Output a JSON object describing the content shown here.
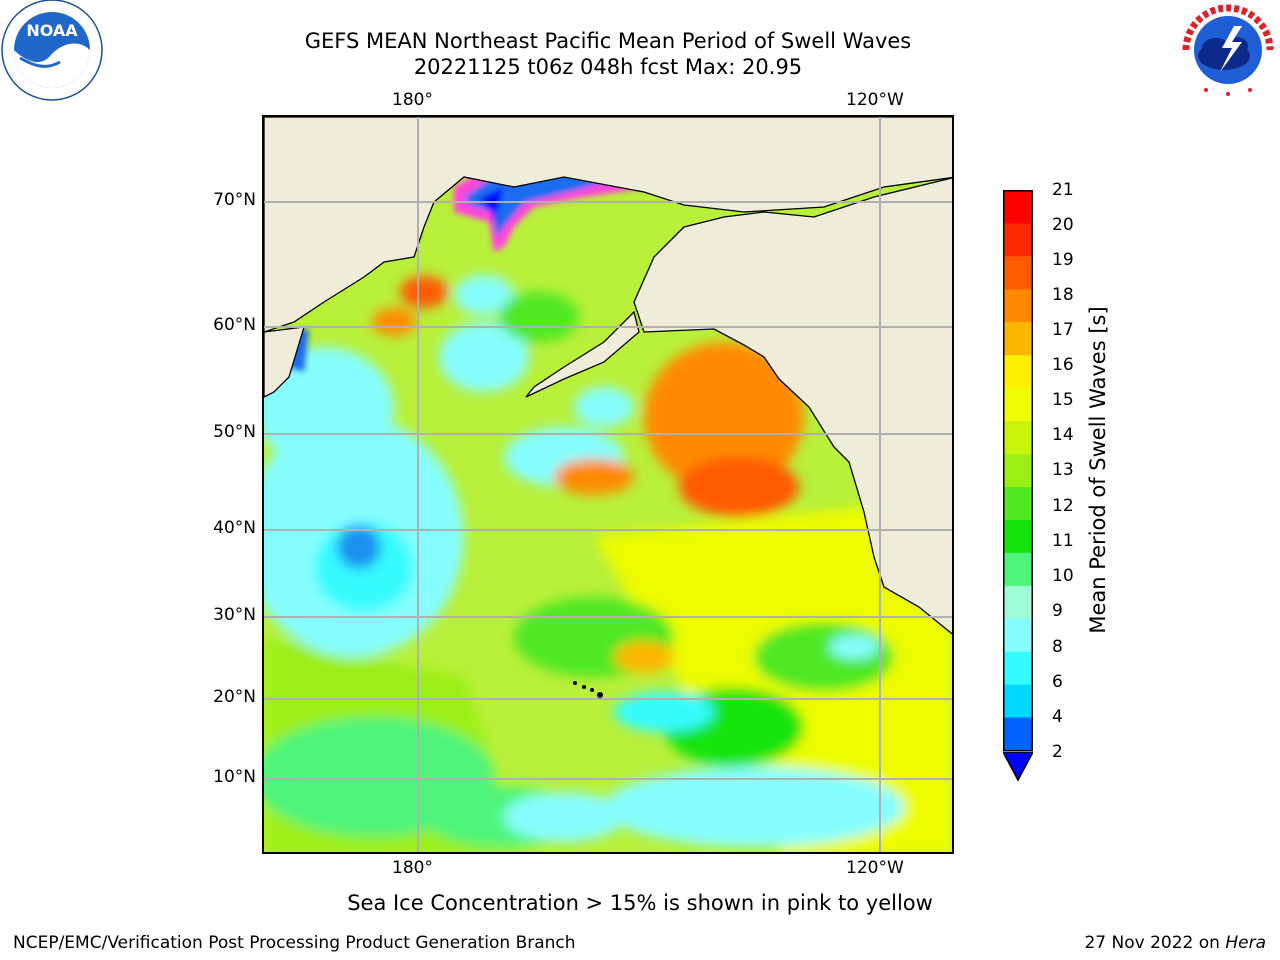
{
  "header": {
    "title_line1": "GEFS MEAN Northeast Pacific Mean Period of Swell Waves",
    "title_line2": "20221125 t06z 048h fcst   Max: 20.95"
  },
  "logos": {
    "noaa": {
      "text": "NOAA",
      "ring_text": "NATIONAL OCEANIC AND ATMOSPHERIC ADMINISTRATION · U.S. DEPARTMENT OF COMMERCE",
      "icon": "noaa-logo-icon"
    },
    "nws": {
      "ring_text": "NATIONAL WEATHER SERVICE",
      "icon": "nws-logo-icon"
    }
  },
  "map": {
    "lon_labels_top": [
      "180°",
      "120°W"
    ],
    "lon_labels_bottom": [
      "180°",
      "120°W"
    ],
    "lat_labels": [
      "70°N",
      "60°N",
      "50°N",
      "40°N",
      "30°N",
      "20°N",
      "10°N"
    ],
    "colors": {
      "land": "#efecd9",
      "ocean_base": "#b8f03a",
      "grid": "#b0b0b0"
    }
  },
  "colorbar": {
    "label": "Mean Period of Swell Waves [s]",
    "ticks": [
      "21",
      "20",
      "19",
      "18",
      "17",
      "16",
      "15",
      "14",
      "13",
      "12",
      "11",
      "10",
      "9",
      "8",
      "6",
      "4",
      "2"
    ],
    "colors_bottom_to_top": [
      "#0062ff",
      "#00d8ff",
      "#35fbff",
      "#86feff",
      "#9efdd8",
      "#4ef57a",
      "#15e40b",
      "#50e820",
      "#9cef15",
      "#c9f30b",
      "#eefc05",
      "#fff000",
      "#fcb800",
      "#ff8a00",
      "#ff5a00",
      "#ff2a00",
      "#ff0000"
    ],
    "under_color": "#0000ff"
  },
  "footer": {
    "note": "Sea Ice Concentration > 15% is shown in pink to yellow",
    "left": "NCEP/EMC/Verification Post Processing Product Generation Branch",
    "right_prefix": "27 Nov 2022 on ",
    "right_emph": "Hera"
  }
}
